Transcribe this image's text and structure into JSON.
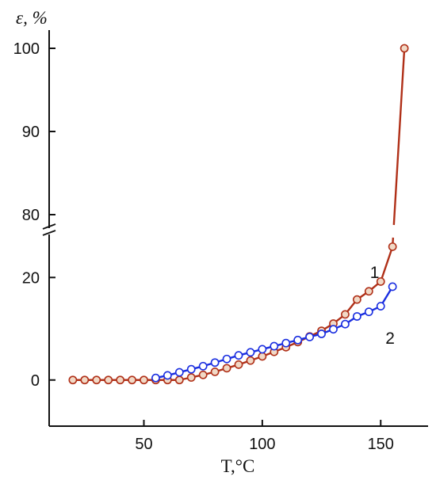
{
  "chart_data": {
    "type": "line",
    "title": "",
    "xlabel": "T,°C",
    "ylabel": "ε, %",
    "xlim": [
      10,
      170
    ],
    "x_ticks": [
      50,
      100,
      150
    ],
    "y_break": {
      "lower_max": 27,
      "upper_min": 78
    },
    "y_ticks": [
      0,
      20,
      80,
      90,
      100
    ],
    "y_lower_range": [
      -9,
      27
    ],
    "y_upper_range": [
      78,
      102
    ],
    "series": [
      {
        "name": "1",
        "color": "#b03018",
        "marker_fill": "#f1d9c6",
        "x": [
          20,
          25,
          30,
          35,
          40,
          45,
          50,
          55,
          60,
          65,
          70,
          75,
          80,
          85,
          90,
          95,
          100,
          105,
          110,
          115,
          120,
          125,
          130,
          135,
          140,
          145,
          150,
          155,
          160
        ],
        "y": [
          0.0,
          0.0,
          0.0,
          0.0,
          0.0,
          0.0,
          0.0,
          0.0,
          0.0,
          0.0,
          0.5,
          1.0,
          1.6,
          2.3,
          3.0,
          3.8,
          4.6,
          5.5,
          6.4,
          7.4,
          8.5,
          9.6,
          11.0,
          12.8,
          15.7,
          17.3,
          19.2,
          26.0,
          100
        ]
      },
      {
        "name": "2",
        "color": "#1a2ee0",
        "marker_fill": "#ffffff",
        "x": [
          55,
          60,
          65,
          70,
          75,
          80,
          85,
          90,
          95,
          100,
          105,
          110,
          115,
          120,
          125,
          130,
          135,
          140,
          145,
          150,
          155
        ],
        "y": [
          0.4,
          0.9,
          1.5,
          2.1,
          2.7,
          3.4,
          4.1,
          4.8,
          5.4,
          6.0,
          6.6,
          7.2,
          7.8,
          8.4,
          9.0,
          9.9,
          10.9,
          12.4,
          13.3,
          14.4,
          18.2
        ]
      }
    ],
    "labels": {
      "series1": "1",
      "series2": "2"
    },
    "grid": false,
    "legend": "none"
  }
}
